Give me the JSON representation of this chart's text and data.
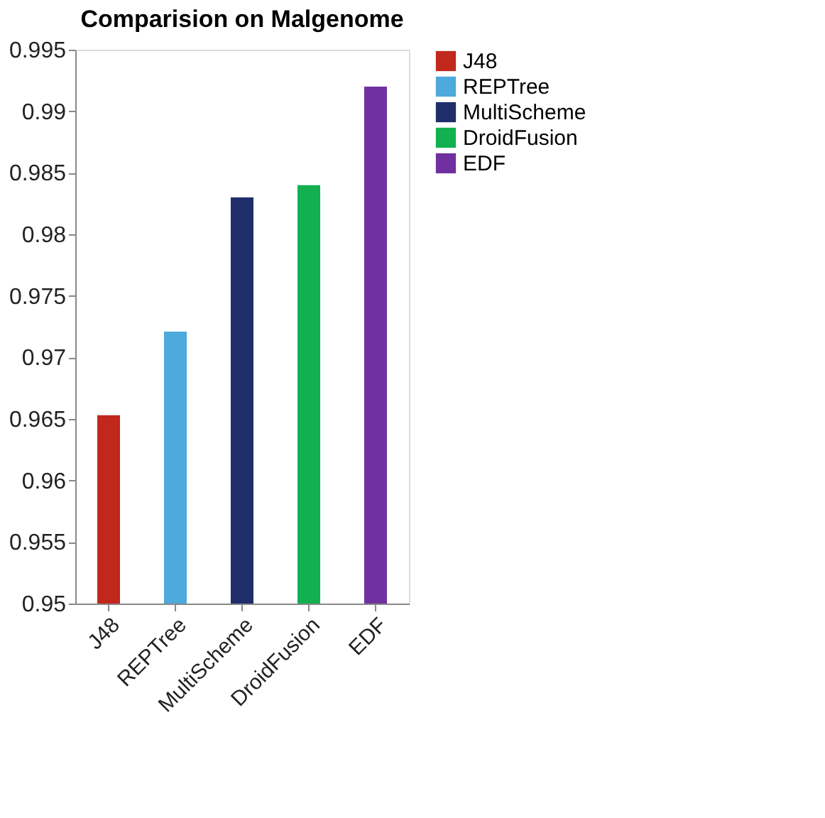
{
  "chart_data": {
    "type": "bar",
    "title": "Comparision on Malgenome",
    "categories": [
      "J48",
      "REPTree",
      "MultiScheme",
      "DroidFusion",
      "EDF"
    ],
    "series": [
      {
        "name": "J48",
        "color": "#c0281c",
        "values": [
          0.9653,
          null,
          null,
          null,
          null
        ]
      },
      {
        "name": "REPTree",
        "color": "#4ea9dc",
        "values": [
          null,
          0.9721,
          null,
          null,
          null
        ]
      },
      {
        "name": "MultiScheme",
        "color": "#1f2d6b",
        "values": [
          null,
          null,
          0.983,
          null,
          null
        ]
      },
      {
        "name": "DroidFusion",
        "color": "#12b050",
        "values": [
          null,
          null,
          null,
          0.984,
          null
        ]
      },
      {
        "name": "EDF",
        "color": "#7030a0",
        "values": [
          null,
          null,
          null,
          null,
          0.992
        ]
      }
    ],
    "ylim": [
      0.95,
      0.995
    ],
    "yticks": [
      0.95,
      0.955,
      0.96,
      0.965,
      0.97,
      0.975,
      0.98,
      0.985,
      0.99,
      0.995
    ],
    "grid": false,
    "legend": "right"
  }
}
